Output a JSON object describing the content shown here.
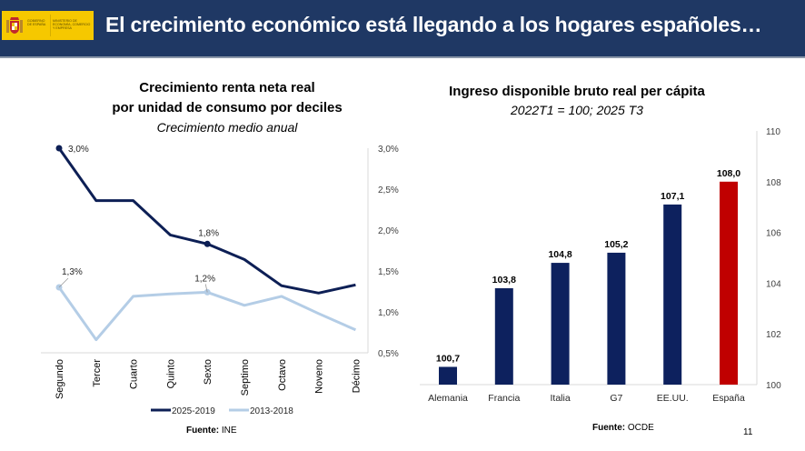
{
  "header": {
    "title": "El crecimiento económico está llegando a los hogares españoles…",
    "logo_text_left": "GOBIERNO DE ESPAÑA",
    "logo_text_right": "MINISTERIO DE ECONOMÍA, COMERCIO Y EMPRESA",
    "background_color": "#1f3864",
    "logo_color": "#f6c800"
  },
  "left_chart": {
    "title_line1": "Crecimiento renta neta real",
    "title_line2": "por unidad de consumo por deciles",
    "subtitle": "Crecimiento medio anual",
    "source_label": "Fuente:",
    "source_value": " INE"
  },
  "right_chart": {
    "title": "Ingreso disponible bruto real per cápita",
    "subtitle": "2022T1 = 100; 2025 T3",
    "source_label": "Fuente:",
    "source_value": " OCDE"
  },
  "page_number": "11",
  "chart_data": [
    {
      "type": "line",
      "title": "Crecimiento renta neta real por unidad de consumo por deciles",
      "subtitle": "Crecimiento medio anual",
      "categories": [
        "Segundo",
        "Tercer",
        "Cuarto",
        "Quinto",
        "Sexto",
        "Septimo",
        "Octavo",
        "Noveno",
        "Décimo"
      ],
      "series": [
        {
          "name": "2025-2019",
          "color": "#0d1f55",
          "values": [
            3.0,
            2.36,
            2.36,
            1.94,
            1.83,
            1.64,
            1.32,
            1.23,
            1.33
          ],
          "labels": [
            {
              "index": 0,
              "text": "3,0%"
            },
            {
              "index": 4,
              "text": "1,8%"
            }
          ]
        },
        {
          "name": "2013-2018",
          "color": "#b4cde6",
          "values": [
            1.3,
            0.66,
            1.19,
            1.22,
            1.24,
            1.08,
            1.19,
            0.98,
            0.78
          ],
          "labels": [
            {
              "index": 0,
              "text": "1,3%"
            },
            {
              "index": 4,
              "text": "1,2%"
            }
          ]
        }
      ],
      "yaxis_position": "right",
      "ylim": [
        0.5,
        3.0
      ],
      "yticks": [
        3.0,
        2.5,
        2.0,
        1.5,
        1.0,
        0.5
      ],
      "ytick_labels": [
        "3,0%",
        "2,5%",
        "2,0%",
        "1,5%",
        "1,0%",
        "0,5%"
      ],
      "grid": false,
      "legend": "bottom",
      "source": "Fuente: INE"
    },
    {
      "type": "bar",
      "title": "Ingreso disponible bruto real per cápita",
      "subtitle": "2022T1 = 100; 2025 T3",
      "categories": [
        "Alemania",
        "Francia",
        "Italia",
        "G7",
        "EE.UU.",
        "España"
      ],
      "values": [
        100.7,
        103.8,
        104.8,
        105.2,
        107.1,
        108.0
      ],
      "value_labels": [
        "100,7",
        "103,8",
        "104,8",
        "105,2",
        "107,1",
        "108,0"
      ],
      "colors": [
        "#0d215e",
        "#0d215e",
        "#0d215e",
        "#0d215e",
        "#0d215e",
        "#c00000"
      ],
      "yaxis_position": "right",
      "ylim": [
        100,
        110
      ],
      "yticks": [
        110,
        108,
        106,
        104,
        102,
        100
      ],
      "ytick_labels": [
        "110",
        "108",
        "106",
        "104",
        "102",
        "100"
      ],
      "grid": false,
      "source": "Fuente: OCDE"
    }
  ]
}
